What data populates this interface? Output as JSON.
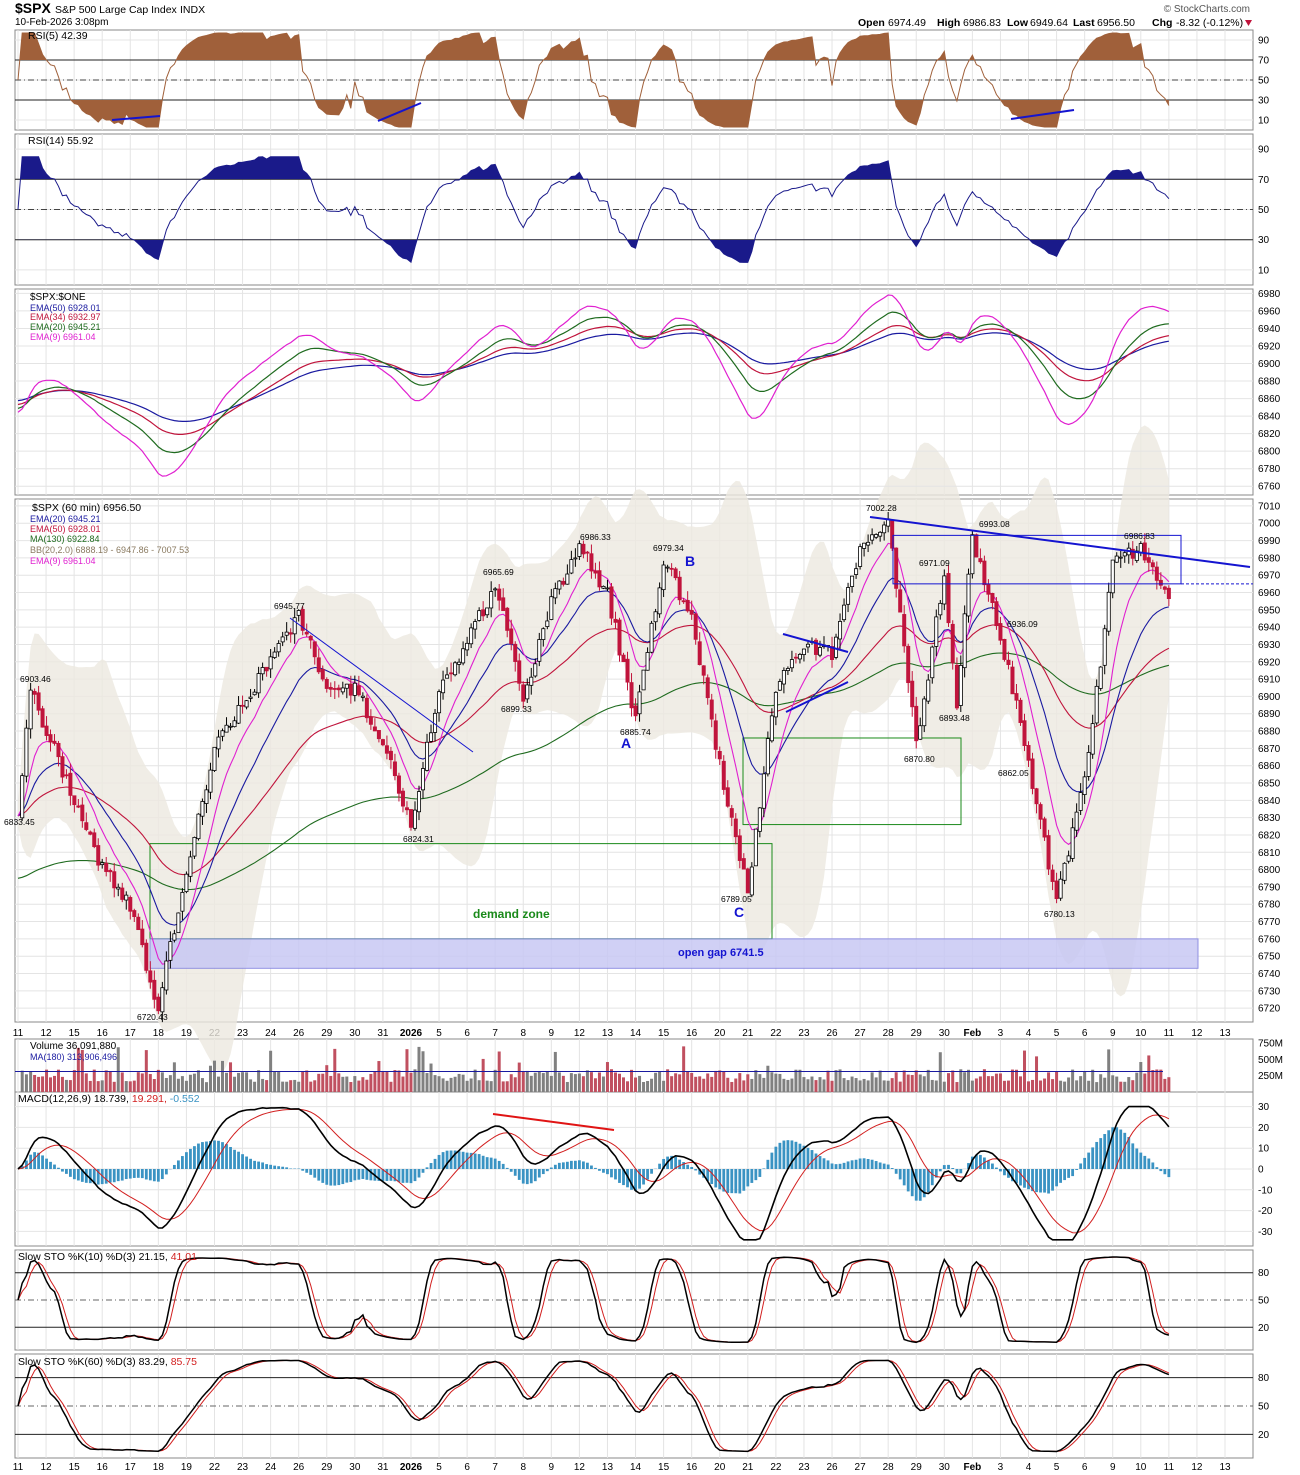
{
  "header": {
    "symbol": "$SPX",
    "name": "S&P 500 Large Cap Index",
    "exchange": "INDX",
    "datetime": "10-Feb-2026 3:08pm",
    "watermark": "© StockCharts.com",
    "quote": {
      "open_label": "Open",
      "open": "6974.49",
      "high_label": "High",
      "high": "6986.83",
      "low_label": "Low",
      "low": "6949.64",
      "last_label": "Last",
      "last": "6956.50",
      "chg_label": "Chg",
      "chg": "-8.32 (-0.12%)"
    }
  },
  "colors": {
    "candle_up": "#000000",
    "candle_down": "#c0143c",
    "ema20": "#1a1aa0",
    "ema50": "#c0143c",
    "ma130": "#1f6b1f",
    "ema9": "#e020d0",
    "bb_fill": "#ece8e0",
    "rsi_line": "#a0603a",
    "rsi_fill": "#a0603a",
    "rsi14_line": "#1a1a8a",
    "macd_line": "#000000",
    "macd_signal": "#d21f1f",
    "macd_hist": "#3a93c3",
    "volume_up": "#808080",
    "volume_down": "#c05060",
    "annot_blue": "#1414d0",
    "annot_green": "#1a8a1a",
    "gap_fill": "#c8c8f4",
    "trend_red": "#e01414"
  },
  "x_axis_labels": [
    "11",
    "12",
    "15",
    "16",
    "17",
    "18",
    "19",
    "22",
    "23",
    "24",
    "26",
    "29",
    "30",
    "31",
    "2026",
    "5",
    "6",
    "7",
    "8",
    "9",
    "12",
    "13",
    "14",
    "15",
    "16",
    "20",
    "21",
    "22",
    "23",
    "26",
    "27",
    "28",
    "29",
    "30",
    "Feb",
    "3",
    "4",
    "5",
    "6",
    "9",
    "10",
    "11",
    "12",
    "13"
  ],
  "panels": {
    "rsi5": {
      "label": "RSI(5) 42.39",
      "ticks": [
        "90",
        "70",
        "50",
        "30",
        "10"
      ]
    },
    "rsi14": {
      "label": "RSI(14) 55.92",
      "ticks": [
        "90",
        "70",
        "50",
        "30",
        "10"
      ]
    },
    "ratio": {
      "label": "$SPX:$ONE",
      "legend": [
        "EMA(50) 6928.01",
        "EMA(34) 6932.97",
        "EMA(20) 6945.21",
        "EMA(9) 6961.04"
      ],
      "ticks": [
        "6980",
        "6960",
        "6940",
        "6920",
        "6900",
        "6880",
        "6860",
        "6840",
        "6820",
        "6800",
        "6780",
        "6760"
      ]
    },
    "price": {
      "label": "$SPX (60 min) 6956.50",
      "legend": [
        "EMA(20) 6945.21",
        "EMA(50) 6928.01",
        "MA(130) 6922.84",
        "BB(20,2.0) 6888.19 - 6947.86 - 7007.53",
        "EMA(9) 6961.04"
      ],
      "ticks": [
        "7010",
        "7000",
        "6990",
        "6980",
        "6970",
        "6960",
        "6950",
        "6940",
        "6930",
        "6920",
        "6910",
        "6900",
        "6890",
        "6880",
        "6870",
        "6860",
        "6850",
        "6840",
        "6830",
        "6820",
        "6810",
        "6800",
        "6790",
        "6780",
        "6770",
        "6760",
        "6750",
        "6740",
        "6730",
        "6720"
      ],
      "price_labels": [
        "6903.46",
        "6833.45",
        "6720.43",
        "6945.77",
        "6824.31",
        "6965.69",
        "6899.33",
        "6986.33",
        "6885.74",
        "6979.34",
        "6789.05",
        "7002.28",
        "6971.09",
        "6870.80",
        "6893.48",
        "6993.08",
        "6936.09",
        "6862.05",
        "6780.13",
        "6986.83"
      ],
      "wave_labels": [
        "A",
        "B",
        "C"
      ],
      "demand_zone": "demand zone",
      "open_gap": "open gap 6741.5"
    },
    "volume": {
      "label": "Volume 36,091,880",
      "ma_label": "MA(180) 313,906,496",
      "ticks": [
        "750M",
        "500M",
        "250M"
      ]
    },
    "macd": {
      "label_a": "MACD(12,26,9) 18.739,",
      "label_b": " 19.291,",
      "label_c": " -0.552",
      "ticks": [
        "30",
        "20",
        "10",
        "0",
        "-10",
        "-20",
        "-30"
      ]
    },
    "sto10": {
      "label_a": "Slow STO %K(10) %D(3) 21.15,",
      "label_b": " 41.01",
      "ticks": [
        "80",
        "50",
        "20"
      ]
    },
    "sto60": {
      "label_a": "Slow STO %K(60) %D(3) 83.29,",
      "label_b": " 85.75",
      "ticks": [
        "80",
        "50",
        "20"
      ]
    }
  },
  "chart_data": {
    "type": "line",
    "symbol": "$SPX",
    "interval": "60 min",
    "x": [
      "11",
      "12",
      "15",
      "16",
      "17",
      "18",
      "19",
      "22",
      "23",
      "24",
      "26",
      "29",
      "30",
      "31",
      "2026",
      "5",
      "6",
      "7",
      "8",
      "9",
      "12",
      "13",
      "14",
      "15",
      "16",
      "20",
      "21",
      "22",
      "23",
      "26",
      "27",
      "28",
      "29",
      "30",
      "Feb",
      "3",
      "4",
      "5",
      "6",
      "9",
      "10",
      "11",
      "12",
      "13"
    ],
    "price_anchors": [
      {
        "x": "11",
        "v": 6833.45
      },
      {
        "x": "11",
        "v": 6903.46
      },
      {
        "x": "16",
        "v": 6800
      },
      {
        "x": "17",
        "v": 6780
      },
      {
        "x": "18",
        "v": 6720.43
      },
      {
        "x": "19",
        "v": 6800
      },
      {
        "x": "22",
        "v": 6870
      },
      {
        "x": "24",
        "v": 6920
      },
      {
        "x": "26",
        "v": 6945.77
      },
      {
        "x": "29",
        "v": 6905
      },
      {
        "x": "30",
        "v": 6905
      },
      {
        "x": "31",
        "v": 6875
      },
      {
        "x": "2026",
        "v": 6824.31
      },
      {
        "x": "5",
        "v": 6905
      },
      {
        "x": "6",
        "v": 6930
      },
      {
        "x": "7",
        "v": 6965.69
      },
      {
        "x": "8",
        "v": 6899.33
      },
      {
        "x": "9",
        "v": 6955
      },
      {
        "x": "12",
        "v": 6986.33
      },
      {
        "x": "13",
        "v": 6960
      },
      {
        "x": "14",
        "v": 6885.74
      },
      {
        "x": "15",
        "v": 6979.34
      },
      {
        "x": "16",
        "v": 6945
      },
      {
        "x": "20",
        "v": 6860
      },
      {
        "x": "21",
        "v": 6789.05
      },
      {
        "x": "22",
        "v": 6905
      },
      {
        "x": "23",
        "v": 6930
      },
      {
        "x": "26",
        "v": 6925
      },
      {
        "x": "27",
        "v": 6985
      },
      {
        "x": "28",
        "v": 7002.28
      },
      {
        "x": "29",
        "v": 6870.8
      },
      {
        "x": "30",
        "v": 6971.09
      },
      {
        "x": "30",
        "v": 6893.48
      },
      {
        "x": "Feb",
        "v": 6993.08
      },
      {
        "x": "3",
        "v": 6936.09
      },
      {
        "x": "4",
        "v": 6862.05
      },
      {
        "x": "5",
        "v": 6780.13
      },
      {
        "x": "6",
        "v": 6850
      },
      {
        "x": "9",
        "v": 6975
      },
      {
        "x": "10",
        "v": 6986.83
      },
      {
        "x": "11",
        "v": 6956.5
      }
    ],
    "last": 6956.5,
    "ylim": [
      6712,
      7014
    ],
    "series_values": {
      "ema20": 6945.21,
      "ema50": 6928.01,
      "ma130": 6922.84,
      "ema9": 6961.04,
      "bb_lower": 6888.19,
      "bb_mid": 6947.86,
      "bb_upper": 7007.53,
      "rsi5": 42.39,
      "rsi14": 55.92,
      "volume": 36091880,
      "volume_ma180": 313906496,
      "macd": 18.739,
      "macd_signal": 19.291,
      "macd_hist": -0.552,
      "sto10_k": 21.15,
      "sto10_d": 41.01,
      "sto60_k": 83.29,
      "sto60_d": 85.75
    },
    "demand_zone": [
      6760,
      6815
    ],
    "open_gap": 6741.5
  }
}
